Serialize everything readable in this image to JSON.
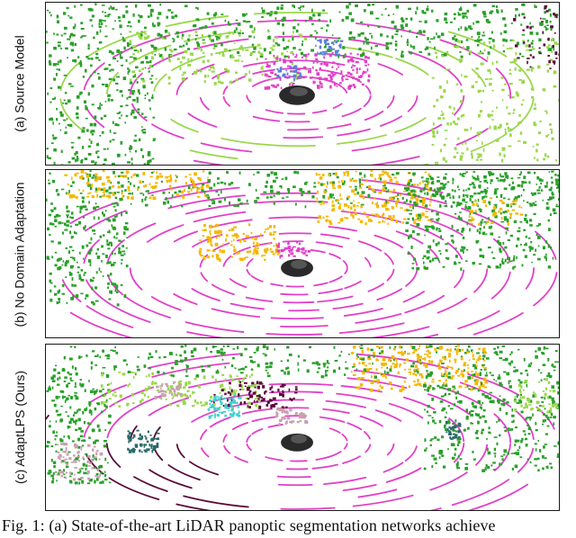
{
  "panels": [
    {
      "id": "source",
      "label": "(a) Source Model"
    },
    {
      "id": "noda",
      "label": "(b) No Domain Adaptation"
    },
    {
      "id": "ours",
      "label": "(c) AdaptLPS (Ours)"
    }
  ],
  "caption": "Fig. 1: (a) State-of-the-art LiDAR panoptic segmentation networks achieve",
  "colors": {
    "road": "#e040c8",
    "sidewalk": "#5a0a3a",
    "terrain": "#9ad84a",
    "vegetation": "#2aa02a",
    "building": "#f5b800",
    "car": "#2a2a2a",
    "person": "#c8a0b0",
    "truck": "#2a6a6a",
    "bicycle": "#5a80d8",
    "other": "#40d0d0"
  }
}
